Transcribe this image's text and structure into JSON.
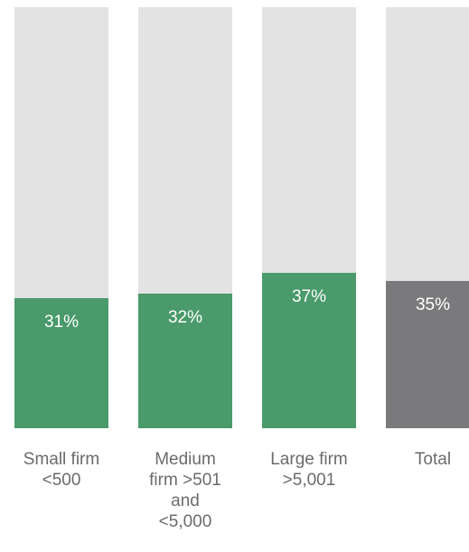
{
  "chart_data": {
    "type": "bar",
    "categories": [
      "Small firm <500",
      "Medium firm >501 and <5,000",
      "Large firm >5,001",
      "Total"
    ],
    "values": [
      31,
      32,
      37,
      35
    ],
    "value_labels": [
      "31%",
      "32%",
      "37%",
      "35%"
    ],
    "colors": [
      "#4a9a6b",
      "#4a9a6b",
      "#4a9a6b",
      "#7a7a7d"
    ],
    "track_color": "#e3e3e3",
    "ylim": [
      0,
      100
    ]
  }
}
